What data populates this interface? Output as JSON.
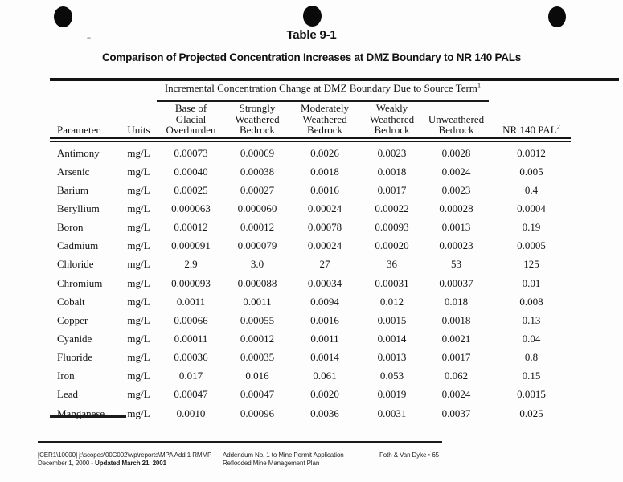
{
  "header": {
    "table_number": "Table 9-1",
    "title": "Comparison of Projected Concentration Increases at DMZ Boundary to NR 140 PALs"
  },
  "table": {
    "span_header": "Incremental Concentration Change at DMZ Boundary Due to Source Term",
    "span_header_sup": "1",
    "col_parameter": "Parameter",
    "col_units": "Units",
    "source_columns": [
      "Base of\nGlacial\nOverburden",
      "Strongly\nWeathered\nBedrock",
      "Moderately\nWeathered\nBedrock",
      "Weakly\nWeathered\nBedrock",
      "Unweathered\nBedrock"
    ],
    "col_pal": "NR 140 PAL",
    "col_pal_sup": "2",
    "rows": [
      {
        "param": "Antimony",
        "units": "mg/L",
        "values": [
          "0.00073",
          "0.00069",
          "0.0026",
          "0.0023",
          "0.0028",
          "0.0012"
        ]
      },
      {
        "param": "Arsenic",
        "units": "mg/L",
        "values": [
          "0.00040",
          "0.00038",
          "0.0018",
          "0.0018",
          "0.0024",
          "0.005"
        ]
      },
      {
        "param": "Barium",
        "units": "mg/L",
        "values": [
          "0.00025",
          "0.00027",
          "0.0016",
          "0.0017",
          "0.0023",
          "0.4"
        ]
      },
      {
        "param": "Beryllium",
        "units": "mg/L",
        "values": [
          "0.000063",
          "0.000060",
          "0.00024",
          "0.00022",
          "0.00028",
          "0.0004"
        ]
      },
      {
        "param": "Boron",
        "units": "mg/L",
        "values": [
          "0.00012",
          "0.00012",
          "0.00078",
          "0.00093",
          "0.0013",
          "0.19"
        ]
      },
      {
        "param": "Cadmium",
        "units": "mg/L",
        "values": [
          "0.000091",
          "0.000079",
          "0.00024",
          "0.00020",
          "0.00023",
          "0.0005"
        ]
      },
      {
        "param": "Chloride",
        "units": "mg/L",
        "values": [
          "2.9",
          "3.0",
          "27",
          "36",
          "53",
          "125"
        ]
      },
      {
        "param": "Chromium",
        "units": "mg/L",
        "values": [
          "0.000093",
          "0.000088",
          "0.00034",
          "0.00031",
          "0.00037",
          "0.01"
        ]
      },
      {
        "param": "Cobalt",
        "units": "mg/L",
        "values": [
          "0.0011",
          "0.0011",
          "0.0094",
          "0.012",
          "0.018",
          "0.008"
        ]
      },
      {
        "param": "Copper",
        "units": "mg/L",
        "values": [
          "0.00066",
          "0.00055",
          "0.0016",
          "0.0015",
          "0.0018",
          "0.13"
        ]
      },
      {
        "param": "Cyanide",
        "units": "mg/L",
        "values": [
          "0.00011",
          "0.00012",
          "0.0011",
          "0.0014",
          "0.0021",
          "0.04"
        ]
      },
      {
        "param": "Fluoride",
        "units": "mg/L",
        "values": [
          "0.00036",
          "0.00035",
          "0.0014",
          "0.0013",
          "0.0017",
          "0.8"
        ]
      },
      {
        "param": "Iron",
        "units": "mg/L",
        "values": [
          "0.017",
          "0.016",
          "0.061",
          "0.053",
          "0.062",
          "0.15"
        ]
      },
      {
        "param": "Lead",
        "units": "mg/L",
        "values": [
          "0.00047",
          "0.00047",
          "0.0020",
          "0.0019",
          "0.0024",
          "0.0015"
        ]
      },
      {
        "param": "Manganese",
        "units": "mg/L",
        "values": [
          "0.0010",
          "0.00096",
          "0.0036",
          "0.0031",
          "0.0037",
          "0.025"
        ]
      }
    ]
  },
  "footer": {
    "doc_ref": "[CER1\\10000] j:\\scopes\\00C002\\wp\\reports\\MPA Add 1 RMMP",
    "date_prefix": "December 1, 2000 - ",
    "date_updated": "Updated March 21, 2001",
    "addendum_line1": "Addendum No. 1 to Mine Permit Application",
    "addendum_line2": "Reflooded Mine Management Plan",
    "page_ref": "Foth & Van Dyke • 65"
  },
  "colors": {
    "ink": "#161616",
    "paper": "#fdfdfd"
  }
}
